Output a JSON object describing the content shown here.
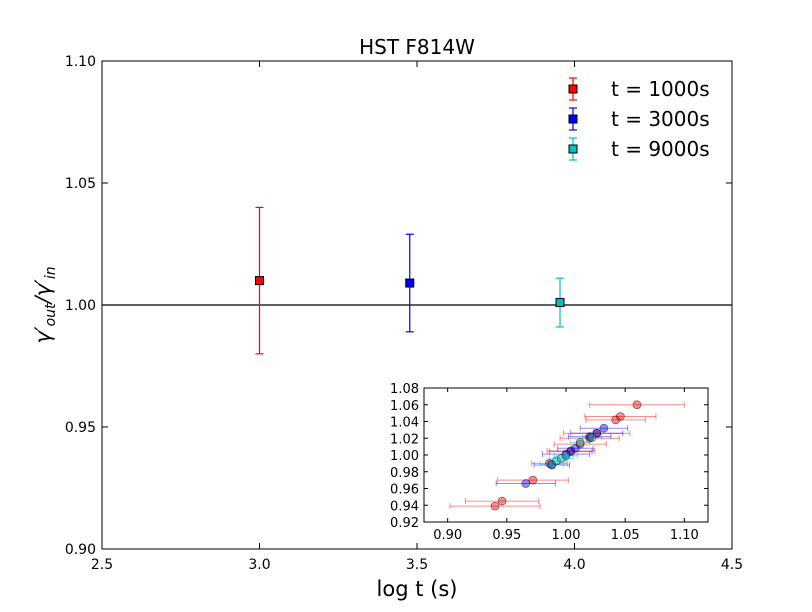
{
  "chart_data": [
    {
      "type": "scatter",
      "title": "HST F814W",
      "xlabel": "log t (s)",
      "ylabel_main": "γ′",
      "ylabel_out": "out",
      "ylabel_sep": "/γ′",
      "ylabel_in": "in",
      "xlim": [
        2.5,
        4.5
      ],
      "ylim": [
        0.9,
        1.1
      ],
      "x_ticks": [
        "2.5",
        "3.0",
        "3.5",
        "4.0",
        "4.5"
      ],
      "y_ticks": [
        "0.90",
        "0.95",
        "1.00",
        "1.05",
        "1.10"
      ],
      "reference_line": 1.0,
      "grid": false,
      "legend_position": "top-right",
      "series": [
        {
          "name": "t = 1000s",
          "color": "#ff0000",
          "marker": "square",
          "points": [
            {
              "x": 3.0,
              "y": 1.01,
              "yerr": 0.03
            }
          ]
        },
        {
          "name": "t = 3000s",
          "color": "#0000ff",
          "marker": "square",
          "points": [
            {
              "x": 3.477,
              "y": 1.009,
              "yerr": 0.02
            }
          ]
        },
        {
          "name": "t = 9000s",
          "color": "#00bfbf",
          "marker": "square",
          "points": [
            {
              "x": 3.954,
              "y": 1.001,
              "yerr": 0.01
            }
          ]
        }
      ]
    },
    {
      "type": "scatter",
      "position": "inset-lower-right",
      "xlim": [
        0.88,
        1.12
      ],
      "ylim": [
        0.92,
        1.08
      ],
      "x_ticks": [
        "0.90",
        "0.95",
        "1.00",
        "1.05",
        "1.10"
      ],
      "y_ticks": [
        "0.92",
        "0.94",
        "0.96",
        "0.98",
        "1.00",
        "1.02",
        "1.04",
        "1.06",
        "1.08"
      ],
      "series": [
        {
          "color": "#ff0000",
          "points": [
            {
              "x": 0.94,
              "y": 0.939,
              "xerr": 0.038
            },
            {
              "x": 0.946,
              "y": 0.945,
              "xerr": 0.031
            },
            {
              "x": 0.972,
              "y": 0.97,
              "xerr": 0.03
            },
            {
              "x": 0.986,
              "y": 0.99,
              "xerr": 0.015
            },
            {
              "x": 1.004,
              "y": 1.005,
              "xerr": 0.02
            },
            {
              "x": 1.012,
              "y": 1.013,
              "xerr": 0.022
            },
            {
              "x": 1.02,
              "y": 1.02,
              "xerr": 0.025
            },
            {
              "x": 1.026,
              "y": 1.026,
              "xerr": 0.028
            },
            {
              "x": 1.042,
              "y": 1.042,
              "xerr": 0.025
            },
            {
              "x": 1.046,
              "y": 1.046,
              "xerr": 0.03
            },
            {
              "x": 1.06,
              "y": 1.06,
              "xerr": 0.04
            }
          ]
        },
        {
          "color": "#0000ff",
          "points": [
            {
              "x": 0.966,
              "y": 0.966,
              "xerr": 0.025
            },
            {
              "x": 0.988,
              "y": 0.988,
              "xerr": 0.015
            },
            {
              "x": 1.0,
              "y": 1.001,
              "xerr": 0.02
            },
            {
              "x": 1.004,
              "y": 1.004,
              "xerr": 0.018
            },
            {
              "x": 1.008,
              "y": 1.008,
              "xerr": 0.015
            },
            {
              "x": 1.02,
              "y": 1.022,
              "xerr": 0.018
            },
            {
              "x": 1.026,
              "y": 1.026,
              "xerr": 0.022
            },
            {
              "x": 1.032,
              "y": 1.032,
              "xerr": 0.02
            }
          ]
        },
        {
          "color": "#00bfbf",
          "points": [
            {
              "x": 0.988,
              "y": 0.989,
              "xerr": 0.01
            },
            {
              "x": 0.992,
              "y": 0.993,
              "xerr": 0.008
            },
            {
              "x": 0.996,
              "y": 0.996,
              "xerr": 0.01
            },
            {
              "x": 1.0,
              "y": 0.999,
              "xerr": 0.01
            },
            {
              "x": 1.012,
              "y": 1.015,
              "xerr": 0.008
            },
            {
              "x": 1.022,
              "y": 1.021,
              "xerr": 0.008
            }
          ]
        }
      ]
    }
  ]
}
